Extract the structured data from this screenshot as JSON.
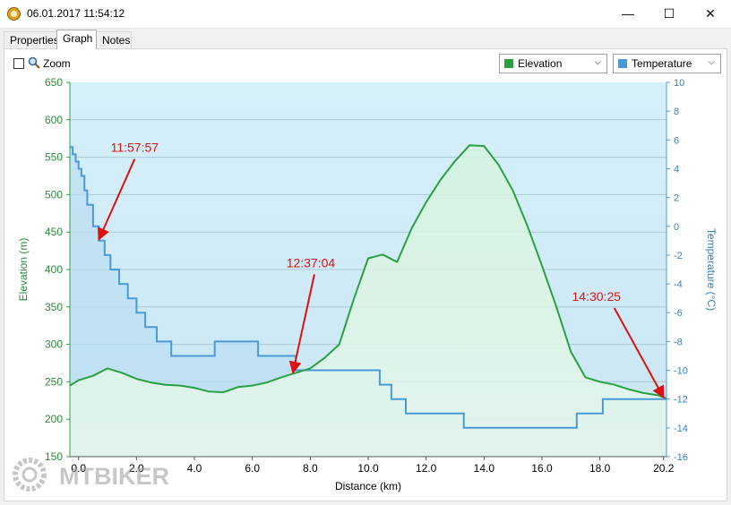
{
  "window": {
    "title": "06.01.2017 11:54:12",
    "controls": {
      "minimize": "—",
      "maximize": "☐",
      "close": "✕"
    }
  },
  "tabs": [
    {
      "label": "Properties"
    },
    {
      "label": "Graph"
    },
    {
      "label": "Notes"
    }
  ],
  "toolbar": {
    "zoom": {
      "label": "Zoom",
      "checked": false
    },
    "left_series_select": {
      "value": "Elevation",
      "color": "#2aa042"
    },
    "right_series_select": {
      "value": "Temperature",
      "color": "#4a9ad8"
    }
  },
  "watermark": "MTBIKER",
  "chart_data": {
    "type": "line",
    "xlabel": "Distance  (km)",
    "ylabel": "Elevation (m)",
    "y2label": "Temperature (°C)",
    "xlim": [
      -0.3,
      20.3
    ],
    "ylim": [
      150,
      650
    ],
    "y2lim": [
      -16,
      10
    ],
    "x_ticks": [
      "0.0",
      "2.0",
      "4.0",
      "6.0",
      "8.0",
      "10.0",
      "12.0",
      "14.0",
      "16.0",
      "18.0",
      "20.2"
    ],
    "x_tick_values": [
      0,
      2,
      4,
      6,
      8,
      10,
      12,
      14,
      16,
      18,
      20.2
    ],
    "y_ticks": [
      150,
      200,
      250,
      300,
      350,
      400,
      450,
      500,
      550,
      600,
      650
    ],
    "y2_ticks": [
      -16,
      -14,
      -12,
      -10,
      -8,
      -6,
      -4,
      -2,
      0,
      2,
      4,
      6,
      8,
      10
    ],
    "grid": true,
    "colors": {
      "elevation": "#2aa042",
      "temperature": "#4a9ad8",
      "annotation": "#dd1111"
    },
    "series": [
      {
        "name": "Elevation",
        "axis": "left",
        "x": [
          -0.3,
          0.0,
          0.5,
          1.0,
          1.5,
          2.0,
          2.5,
          3.0,
          3.5,
          4.0,
          4.5,
          5.0,
          5.5,
          6.0,
          6.5,
          7.0,
          7.5,
          8.0,
          8.5,
          9.0,
          9.5,
          10.0,
          10.5,
          11.0,
          11.5,
          12.0,
          12.5,
          13.0,
          13.5,
          14.0,
          14.5,
          15.0,
          15.5,
          16.0,
          16.5,
          17.0,
          17.5,
          18.0,
          18.5,
          19.0,
          19.5,
          20.0,
          20.3
        ],
        "y": [
          245,
          252,
          258,
          268,
          262,
          254,
          249,
          246,
          245,
          242,
          237,
          236,
          243,
          245,
          249,
          256,
          262,
          268,
          282,
          300,
          360,
          415,
          420,
          410,
          455,
          490,
          520,
          545,
          566,
          565,
          540,
          505,
          458,
          405,
          350,
          290,
          256,
          250,
          246,
          240,
          235,
          232,
          228
        ]
      },
      {
        "name": "Temperature",
        "axis": "right",
        "x": [
          -0.3,
          -0.2,
          -0.1,
          0.0,
          0.1,
          0.2,
          0.3,
          0.5,
          0.7,
          0.9,
          1.1,
          1.4,
          1.7,
          2.0,
          2.3,
          2.7,
          3.2,
          4.5,
          4.7,
          6.0,
          6.2,
          7.4,
          7.5,
          9.5,
          10.0,
          10.4,
          10.8,
          11.3,
          12.0,
          13.3,
          14.0,
          17.2,
          18.1,
          18.5,
          20.3
        ],
        "y": [
          5.5,
          5.0,
          4.5,
          4.0,
          3.5,
          2.5,
          1.5,
          0,
          -1,
          -2,
          -3,
          -4,
          -5,
          -6,
          -7,
          -8,
          -9,
          -9,
          -8,
          -8,
          -9,
          -9,
          -10,
          -10,
          -10,
          -11,
          -12,
          -13,
          -13,
          -14,
          -14,
          -13,
          -12,
          -12,
          -12
        ]
      }
    ],
    "annotations": [
      {
        "label": "11:57:57",
        "x": 0.7,
        "y_elevation": 440
      },
      {
        "label": "12:37:04",
        "x": 7.4,
        "y_elevation": 262
      },
      {
        "label": "14:30:25",
        "x": 20.2,
        "y_elevation": 229
      }
    ]
  }
}
